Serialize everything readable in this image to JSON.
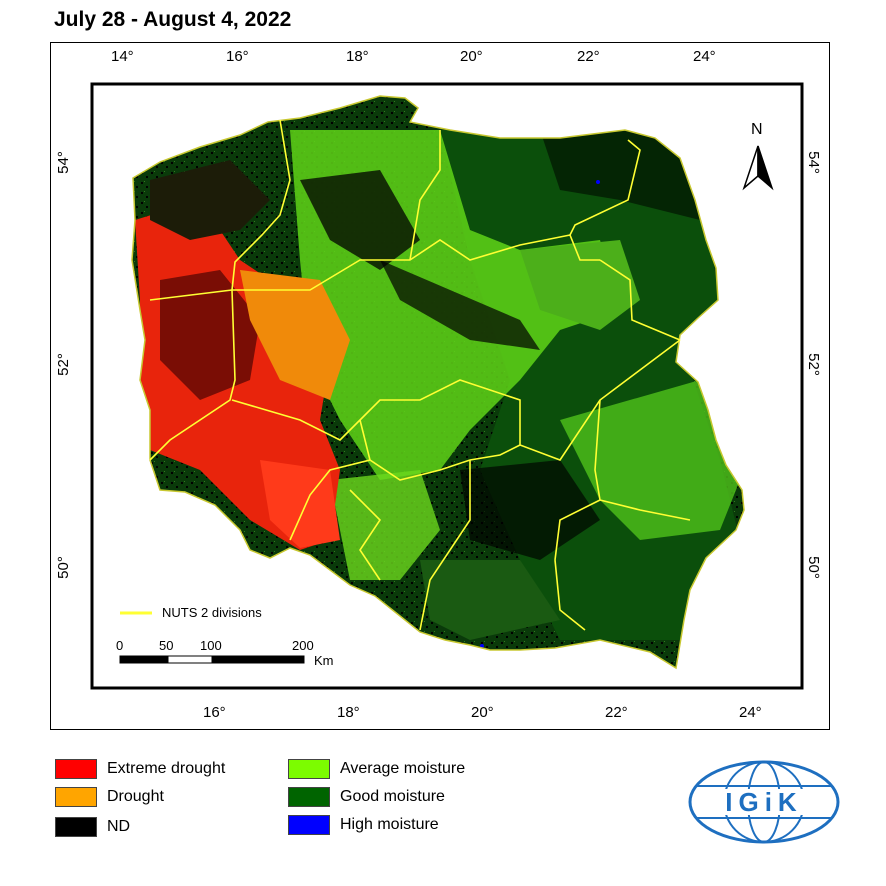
{
  "title": "July 28 - August 4, 2022",
  "top_ticks": [
    "14°",
    "16°",
    "18°",
    "20°",
    "22°",
    "24°"
  ],
  "bottom_ticks": [
    "16°",
    "18°",
    "20°",
    "22°",
    "24°"
  ],
  "left_ticks": [
    "54°",
    "52°",
    "50°"
  ],
  "right_ticks": [
    "54°",
    "52°",
    "50°"
  ],
  "north_label": "N",
  "nuts_label": "NUTS 2 divisions",
  "scale": {
    "labels": [
      "0",
      "50",
      "100",
      "200"
    ],
    "unit": "Km"
  },
  "legend": [
    {
      "label": "Extreme drought",
      "color": "#ff0000"
    },
    {
      "label": "Drought",
      "color": "#ffa500"
    },
    {
      "label": "ND",
      "color": "#000000"
    },
    {
      "label": "Average moisture",
      "color": "#7cfc00"
    },
    {
      "label": "Good moisture",
      "color": "#006400"
    },
    {
      "label": "High moisture",
      "color": "#0000ff"
    }
  ],
  "logo_text": "IGiK",
  "colors": {
    "nuts_line": "#ffff33",
    "logo_blue": "#1e6fc0"
  }
}
